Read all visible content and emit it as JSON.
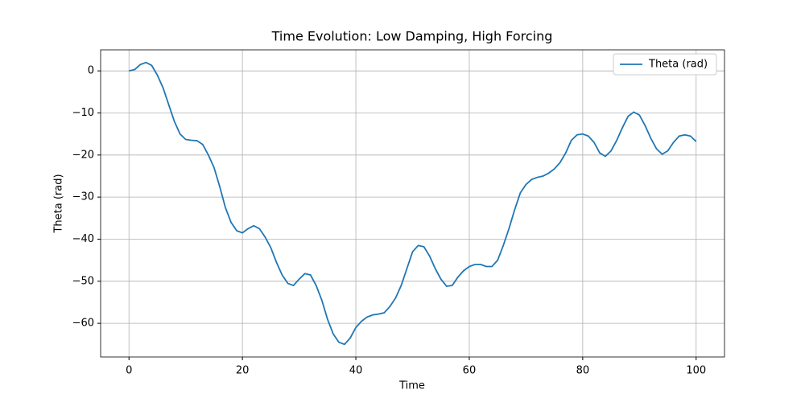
{
  "chart_data": {
    "type": "line",
    "title": "Time Evolution: Low Damping, High Forcing",
    "xlabel": "Time",
    "ylabel": "Theta (rad)",
    "x": [
      0,
      1,
      2,
      3,
      4,
      5,
      6,
      7,
      8,
      9,
      10,
      11,
      12,
      13,
      14,
      15,
      16,
      17,
      18,
      19,
      20,
      21,
      22,
      23,
      24,
      25,
      26,
      27,
      28,
      29,
      30,
      31,
      32,
      33,
      34,
      35,
      36,
      37,
      38,
      39,
      40,
      41,
      42,
      43,
      44,
      45,
      46,
      47,
      48,
      49,
      50,
      51,
      52,
      53,
      54,
      55,
      56,
      57,
      58,
      59,
      60,
      61,
      62,
      63,
      64,
      65,
      66,
      67,
      68,
      69,
      70,
      71,
      72,
      73,
      74,
      75,
      76,
      77,
      78,
      79,
      80,
      81,
      82,
      83,
      84,
      85,
      86,
      87,
      88,
      89,
      90,
      91,
      92,
      93,
      94,
      95,
      96,
      97,
      98,
      99,
      100
    ],
    "series": [
      {
        "name": "Theta (rad)",
        "color": "#1f77b4",
        "values": [
          0,
          0.3,
          1.5,
          2,
          1.3,
          -1,
          -4,
          -8,
          -12,
          -15,
          -16.3,
          -16.5,
          -16.6,
          -17.5,
          -20,
          -23,
          -27.5,
          -32.5,
          -36,
          -38,
          -38.5,
          -37.5,
          -36.8,
          -37.5,
          -39.5,
          -42,
          -45.5,
          -48.5,
          -50.5,
          -51,
          -49.5,
          -48.2,
          -48.5,
          -51,
          -54.5,
          -59,
          -62.5,
          -64.5,
          -65,
          -63.5,
          -61,
          -59.5,
          -58.5,
          -58,
          -57.8,
          -57.5,
          -56,
          -54,
          -51,
          -47,
          -43,
          -41.5,
          -41.8,
          -44,
          -47,
          -49.5,
          -51.2,
          -51,
          -49,
          -47.5,
          -46.5,
          -46,
          -46,
          -46.5,
          -46.5,
          -45,
          -41.5,
          -37.5,
          -33,
          -29,
          -27,
          -25.8,
          -25.3,
          -25,
          -24.3,
          -23.3,
          -21.8,
          -19.5,
          -16.5,
          -15.2,
          -15,
          -15.5,
          -17,
          -19.5,
          -20.3,
          -19,
          -16.5,
          -13.5,
          -10.8,
          -9.8,
          -10.5,
          -13,
          -16,
          -18.5,
          -19.8,
          -19,
          -17,
          -15.5,
          -15.2,
          -15.5,
          -16.8
        ]
      }
    ],
    "xlim": [
      -5,
      105
    ],
    "ylim": [
      -68,
      5
    ],
    "xticks": [
      0,
      20,
      40,
      60,
      80,
      100
    ],
    "yticks": [
      {
        "value": -60,
        "label": "−60"
      },
      {
        "value": -50,
        "label": "−50"
      },
      {
        "value": -40,
        "label": "−40"
      },
      {
        "value": -30,
        "label": "−30"
      },
      {
        "value": -20,
        "label": "−20"
      },
      {
        "value": -10,
        "label": "−10"
      },
      0
    ],
    "grid": true,
    "legend": "upper right"
  }
}
